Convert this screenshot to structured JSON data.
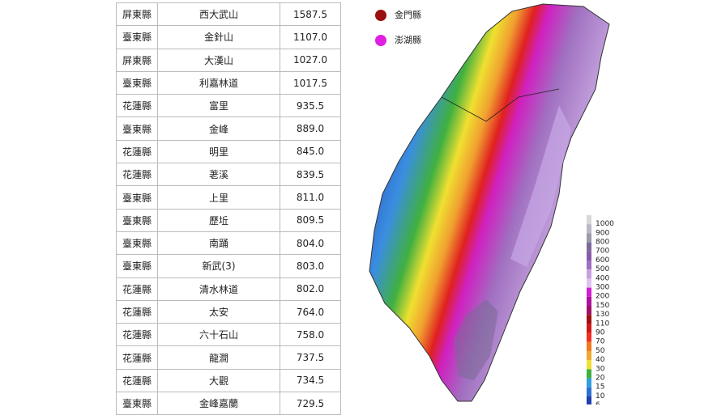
{
  "table": {
    "rows": [
      [
        "屏東縣",
        "西大武山",
        "1587.5"
      ],
      [
        "臺東縣",
        "金針山",
        "1107.0"
      ],
      [
        "屏東縣",
        "大漢山",
        "1027.0"
      ],
      [
        "臺東縣",
        "利嘉林道",
        "1017.5"
      ],
      [
        "花蓮縣",
        "富里",
        "935.5"
      ],
      [
        "臺東縣",
        "金峰",
        "889.0"
      ],
      [
        "花蓮縣",
        "明里",
        "845.0"
      ],
      [
        "花蓮縣",
        "荖溪",
        "839.5"
      ],
      [
        "臺東縣",
        "上里",
        "811.0"
      ],
      [
        "臺東縣",
        "歷坵",
        "809.5"
      ],
      [
        "臺東縣",
        "南踊",
        "804.0"
      ],
      [
        "臺東縣",
        "新武(3)",
        "803.0"
      ],
      [
        "花蓮縣",
        "清水林道",
        "802.0"
      ],
      [
        "花蓮縣",
        "太安",
        "764.0"
      ],
      [
        "花蓮縣",
        "六十石山",
        "758.0"
      ],
      [
        "花蓮縣",
        "龍澗",
        "737.5"
      ],
      [
        "花蓮縣",
        "大觀",
        "734.5"
      ],
      [
        "臺東縣",
        "金峰嘉蘭",
        "729.5"
      ]
    ]
  },
  "map": {
    "insets": [
      {
        "label": "金門縣",
        "color": "#9b1010"
      },
      {
        "label": "澎湖縣",
        "color": "#e020e0"
      }
    ],
    "scale": [
      {
        "label": "1000",
        "color": "#d8d8d8"
      },
      {
        "label": "900",
        "color": "#b8b8c8"
      },
      {
        "label": "800",
        "color": "#9a9aa8"
      },
      {
        "label": "700",
        "color": "#7c6a9a"
      },
      {
        "label": "600",
        "color": "#8a5aaa"
      },
      {
        "label": "500",
        "color": "#a070c0"
      },
      {
        "label": "400",
        "color": "#c8a0e0"
      },
      {
        "label": "300",
        "color": "#e0c0f0"
      },
      {
        "label": "200",
        "color": "#d020d0"
      },
      {
        "label": "150",
        "color": "#b010a0"
      },
      {
        "label": "130",
        "color": "#a0106a"
      },
      {
        "label": "110",
        "color": "#a01010"
      },
      {
        "label": "90",
        "color": "#d01818"
      },
      {
        "label": "70",
        "color": "#f03020"
      },
      {
        "label": "50",
        "color": "#f07a20"
      },
      {
        "label": "40",
        "color": "#f0a830"
      },
      {
        "label": "30",
        "color": "#f0e030"
      },
      {
        "label": "20",
        "color": "#40b040"
      },
      {
        "label": "15",
        "color": "#30a0e0"
      },
      {
        "label": "10",
        "color": "#3070d0"
      },
      {
        "label": "6",
        "color": "#2040b0"
      }
    ]
  }
}
